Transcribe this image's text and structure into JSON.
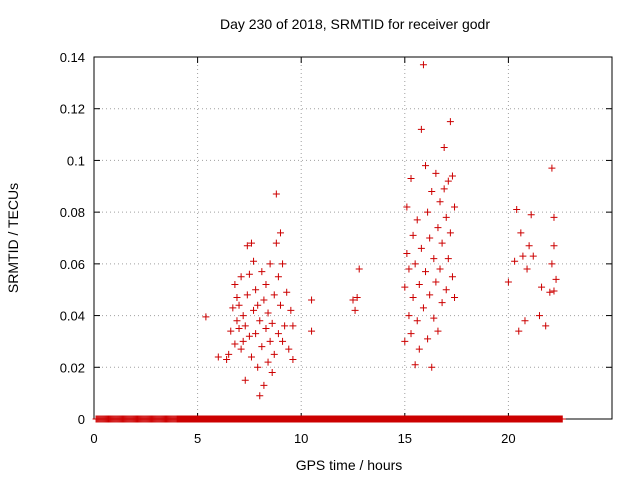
{
  "chart_data": {
    "type": "scatter",
    "title": "Day 230 of 2018, SRMTID for receiver godr",
    "xlabel": "GPS time / hours",
    "ylabel": "SRMTID / TECUs",
    "xlim": [
      0,
      25
    ],
    "ylim": [
      0,
      0.14
    ],
    "xticks": [
      0,
      5,
      10,
      15,
      20
    ],
    "xtick_labels": [
      "0",
      "5",
      "10",
      "15",
      "20"
    ],
    "yticks": [
      0,
      0.02,
      0.04,
      0.06,
      0.08,
      0.1,
      0.12,
      0.14
    ],
    "ytick_labels": [
      "0",
      "0.02",
      "0.04",
      "0.06",
      "0.08",
      "0.1",
      "0.12",
      "0.14"
    ],
    "grid": true,
    "marker": "+",
    "series": [
      {
        "name": "SRMTID",
        "color": "#cc0000",
        "zero_runs": [
          [
            0.1,
            4.0,
            0.05
          ],
          [
            4.0,
            6.6,
            0.025
          ],
          [
            6.6,
            9.6,
            0.02
          ],
          [
            9.6,
            14.9,
            0.025
          ],
          [
            14.9,
            17.9,
            0.02
          ],
          [
            17.9,
            22.6,
            0.02
          ]
        ],
        "points": [
          [
            5.4,
            0.0395
          ],
          [
            6.0,
            0.024
          ],
          [
            6.4,
            0.023
          ],
          [
            6.5,
            0.025
          ],
          [
            6.6,
            0.034
          ],
          [
            6.7,
            0.043
          ],
          [
            6.8,
            0.052
          ],
          [
            6.8,
            0.029
          ],
          [
            6.9,
            0.038
          ],
          [
            6.9,
            0.047
          ],
          [
            7.0,
            0.035
          ],
          [
            7.0,
            0.044
          ],
          [
            7.1,
            0.027
          ],
          [
            7.1,
            0.055
          ],
          [
            7.2,
            0.03
          ],
          [
            7.2,
            0.04
          ],
          [
            7.3,
            0.036
          ],
          [
            7.3,
            0.015
          ],
          [
            7.4,
            0.067
          ],
          [
            7.4,
            0.048
          ],
          [
            7.5,
            0.032
          ],
          [
            7.5,
            0.056
          ],
          [
            7.6,
            0.068
          ],
          [
            7.6,
            0.024
          ],
          [
            7.7,
            0.042
          ],
          [
            7.7,
            0.061
          ],
          [
            7.8,
            0.033
          ],
          [
            7.8,
            0.05
          ],
          [
            7.9,
            0.02
          ],
          [
            7.9,
            0.044
          ],
          [
            8.0,
            0.009
          ],
          [
            8.0,
            0.038
          ],
          [
            8.1,
            0.057
          ],
          [
            8.1,
            0.028
          ],
          [
            8.2,
            0.046
          ],
          [
            8.2,
            0.013
          ],
          [
            8.3,
            0.035
          ],
          [
            8.3,
            0.052
          ],
          [
            8.4,
            0.022
          ],
          [
            8.4,
            0.041
          ],
          [
            8.5,
            0.03
          ],
          [
            8.5,
            0.06
          ],
          [
            8.6,
            0.018
          ],
          [
            8.6,
            0.037
          ],
          [
            8.7,
            0.025
          ],
          [
            8.7,
            0.048
          ],
          [
            8.8,
            0.087
          ],
          [
            8.8,
            0.068
          ],
          [
            8.9,
            0.033
          ],
          [
            8.9,
            0.055
          ],
          [
            9.0,
            0.072
          ],
          [
            9.0,
            0.044
          ],
          [
            9.1,
            0.03
          ],
          [
            9.1,
            0.06
          ],
          [
            9.2,
            0.036
          ],
          [
            9.3,
            0.049
          ],
          [
            9.4,
            0.027
          ],
          [
            9.5,
            0.042
          ],
          [
            9.6,
            0.036
          ],
          [
            9.6,
            0.023
          ],
          [
            10.5,
            0.046
          ],
          [
            10.5,
            0.034
          ],
          [
            12.5,
            0.046
          ],
          [
            12.6,
            0.042
          ],
          [
            12.7,
            0.047
          ],
          [
            12.8,
            0.058
          ],
          [
            15.0,
            0.03
          ],
          [
            15.0,
            0.051
          ],
          [
            15.1,
            0.064
          ],
          [
            15.1,
            0.082
          ],
          [
            15.2,
            0.04
          ],
          [
            15.2,
            0.058
          ],
          [
            15.3,
            0.093
          ],
          [
            15.3,
            0.033
          ],
          [
            15.4,
            0.071
          ],
          [
            15.4,
            0.047
          ],
          [
            15.5,
            0.021
          ],
          [
            15.5,
            0.06
          ],
          [
            15.6,
            0.038
          ],
          [
            15.6,
            0.077
          ],
          [
            15.7,
            0.027
          ],
          [
            15.7,
            0.052
          ],
          [
            15.8,
            0.112
          ],
          [
            15.8,
            0.066
          ],
          [
            15.9,
            0.137
          ],
          [
            15.9,
            0.043
          ],
          [
            16.0,
            0.098
          ],
          [
            16.0,
            0.057
          ],
          [
            16.1,
            0.08
          ],
          [
            16.1,
            0.031
          ],
          [
            16.2,
            0.07
          ],
          [
            16.2,
            0.048
          ],
          [
            16.3,
            0.088
          ],
          [
            16.3,
            0.02
          ],
          [
            16.4,
            0.062
          ],
          [
            16.4,
            0.039
          ],
          [
            16.5,
            0.095
          ],
          [
            16.5,
            0.053
          ],
          [
            16.6,
            0.074
          ],
          [
            16.6,
            0.034
          ],
          [
            16.7,
            0.084
          ],
          [
            16.7,
            0.058
          ],
          [
            16.8,
            0.045
          ],
          [
            16.8,
            0.068
          ],
          [
            16.9,
            0.105
          ],
          [
            16.9,
            0.089
          ],
          [
            17.0,
            0.078
          ],
          [
            17.0,
            0.05
          ],
          [
            17.1,
            0.092
          ],
          [
            17.1,
            0.062
          ],
          [
            17.2,
            0.115
          ],
          [
            17.2,
            0.072
          ],
          [
            17.3,
            0.094
          ],
          [
            17.3,
            0.055
          ],
          [
            17.4,
            0.082
          ],
          [
            17.4,
            0.047
          ],
          [
            20.0,
            0.053
          ],
          [
            20.3,
            0.061
          ],
          [
            20.4,
            0.081
          ],
          [
            20.5,
            0.034
          ],
          [
            20.6,
            0.072
          ],
          [
            20.7,
            0.063
          ],
          [
            20.8,
            0.038
          ],
          [
            20.9,
            0.058
          ],
          [
            21.0,
            0.067
          ],
          [
            21.1,
            0.079
          ],
          [
            21.2,
            0.063
          ],
          [
            21.5,
            0.04
          ],
          [
            21.6,
            0.051
          ],
          [
            21.8,
            0.036
          ],
          [
            22.0,
            0.049
          ],
          [
            22.1,
            0.06
          ],
          [
            22.2,
            0.067
          ],
          [
            22.2,
            0.078
          ],
          [
            22.3,
            0.054
          ],
          [
            22.1,
            0.097
          ],
          [
            22.2,
            0.0495
          ]
        ]
      }
    ]
  }
}
